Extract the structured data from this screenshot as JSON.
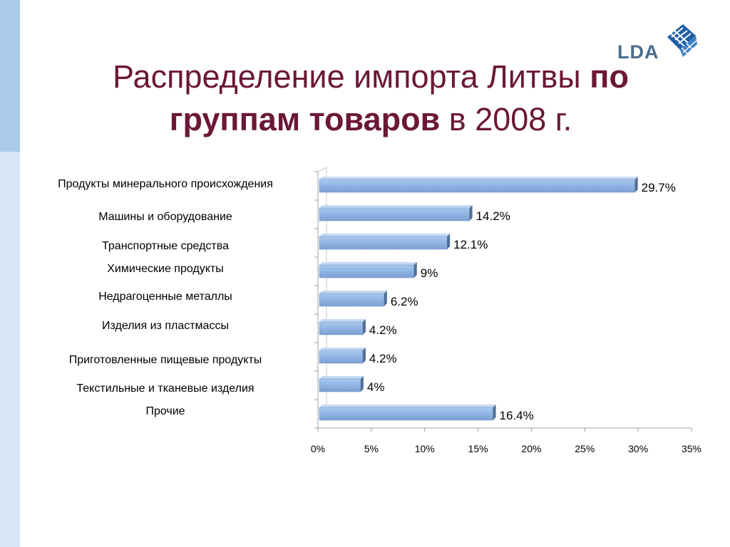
{
  "slide": {
    "title_part1": "Распределение импорта Литвы ",
    "title_bold1": "по",
    "title_bold2": "группам товаров",
    "title_part2": " в 2008 г.",
    "logo_text": "LDA",
    "colors": {
      "title": "#6b1738",
      "bar": "#8fb4e3",
      "bar_edge": "#5c7fa8",
      "side_band_dark": "#a9cbe9",
      "side_band_light": "#d6e6f5"
    }
  },
  "chart_data": {
    "type": "bar",
    "orientation": "horizontal",
    "categories": [
      "Продукты минерального происхождения",
      "Машины и оборудование",
      "Транспортные средства",
      "Химические продукты",
      "Недрагоценные металлы",
      "Изделия из пластмассы",
      "Приготовленные пищевые продукты",
      "Текстильные и тканевые изделия",
      "Прочие"
    ],
    "values": [
      29.7,
      14.2,
      12.1,
      9,
      6.2,
      4.2,
      4.2,
      4,
      16.4
    ],
    "value_labels": [
      "29.7%",
      "14.2%",
      "12.1%",
      "9%",
      "6.2%",
      "4.2%",
      "4.2%",
      "4%",
      "16.4%"
    ],
    "xlim": [
      0,
      35
    ],
    "xticks": [
      0,
      5,
      10,
      15,
      20,
      25,
      30,
      35
    ],
    "xtick_labels": [
      "0%",
      "5%",
      "10%",
      "15%",
      "20%",
      "25%",
      "30%",
      "35%"
    ],
    "grid": false,
    "legend": "none",
    "style": "3d"
  }
}
